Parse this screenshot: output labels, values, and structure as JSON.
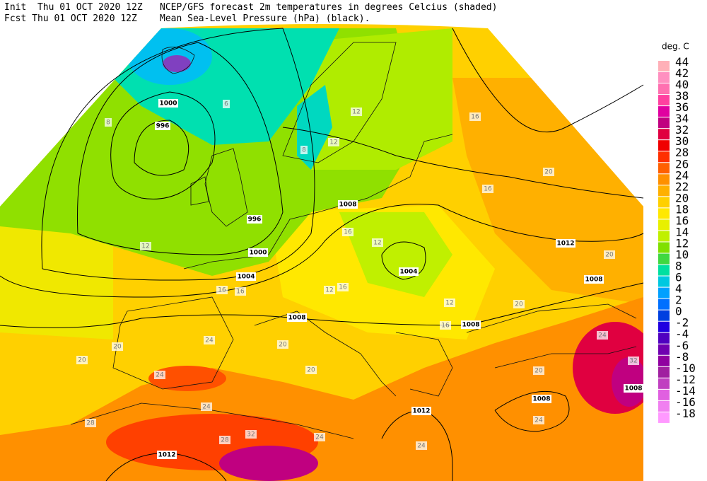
{
  "header": {
    "init": "Init  Thu 01 OCT 2020 12Z",
    "fcst": "Fcst Thu 01 OCT 2020 12Z",
    "title": "NCEP/GFS forecast 2m temperatures in degrees Celcius (shaded)",
    "subtitle": "Mean Sea-Level Pressure (hPa) (black)."
  },
  "legend": {
    "title": "deg. C",
    "levels": [
      {
        "value": 44,
        "color": "#ffb0b8"
      },
      {
        "value": 42,
        "color": "#ff90c0"
      },
      {
        "value": 40,
        "color": "#ff70b0"
      },
      {
        "value": 38,
        "color": "#ff40a0"
      },
      {
        "value": 36,
        "color": "#e000a0"
      },
      {
        "value": 34,
        "color": "#c00080"
      },
      {
        "value": 32,
        "color": "#e00040"
      },
      {
        "value": 30,
        "color": "#f00000"
      },
      {
        "value": 28,
        "color": "#ff3000"
      },
      {
        "value": 26,
        "color": "#ff6000"
      },
      {
        "value": 24,
        "color": "#ff9000"
      },
      {
        "value": 22,
        "color": "#ffb000"
      },
      {
        "value": 20,
        "color": "#ffd000"
      },
      {
        "value": 18,
        "color": "#ffe800"
      },
      {
        "value": 16,
        "color": "#e8f000"
      },
      {
        "value": 14,
        "color": "#c0f000"
      },
      {
        "value": 12,
        "color": "#80e000"
      },
      {
        "value": 10,
        "color": "#40d840"
      },
      {
        "value": 8,
        "color": "#00e0a0"
      },
      {
        "value": 6,
        "color": "#00c8e0"
      },
      {
        "value": 4,
        "color": "#00a0ff"
      },
      {
        "value": 2,
        "color": "#0070ff"
      },
      {
        "value": 0,
        "color": "#0040e0"
      },
      {
        "value": -2,
        "color": "#2000e0"
      },
      {
        "value": -4,
        "color": "#5000c0"
      },
      {
        "value": -6,
        "color": "#7000b0"
      },
      {
        "value": -8,
        "color": "#9000a0"
      },
      {
        "value": -10,
        "color": "#a020a0"
      },
      {
        "value": -12,
        "color": "#c040c0"
      },
      {
        "value": -14,
        "color": "#e060e0"
      },
      {
        "value": -16,
        "color": "#f080f0"
      },
      {
        "value": -18,
        "color": "#ff99ff"
      }
    ]
  },
  "map": {
    "isobar_labels": [
      "1000",
      "996",
      "996",
      "1000",
      "1004",
      "1008",
      "1004",
      "1008",
      "1008",
      "1012",
      "1008",
      "1012",
      "1008",
      "1008",
      "1012"
    ],
    "temperature_labels": [
      "8",
      "6",
      "12",
      "16",
      "16",
      "20",
      "20",
      "24",
      "24",
      "20",
      "20",
      "24",
      "28",
      "32",
      "28",
      "24",
      "24",
      "24",
      "20",
      "20",
      "20",
      "16",
      "16",
      "12",
      "12",
      "8",
      "16",
      "12",
      "16",
      "12",
      "12",
      "16",
      "20",
      "24",
      "32"
    ]
  }
}
